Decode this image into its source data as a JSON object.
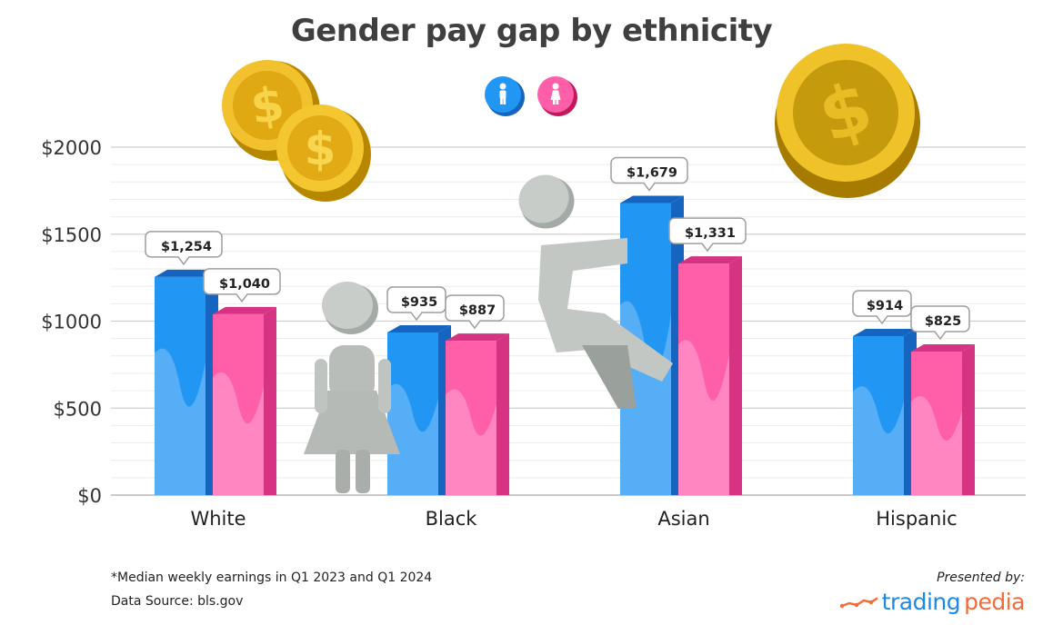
{
  "title": "Gender pay gap by ethnicity",
  "legend": {
    "items": [
      {
        "name": "male-icon",
        "color": "#1e88e5"
      },
      {
        "name": "female-icon",
        "color": "#f0509a"
      }
    ]
  },
  "colors": {
    "male_front": "#2196f3",
    "male_side": "#1565c0",
    "female_front": "#ff5fa8",
    "female_side": "#d63384",
    "grid": "#dddddd",
    "coin": "#e8b820"
  },
  "chart_data": {
    "type": "bar",
    "categories": [
      "White",
      "Black",
      "Asian",
      "Hispanic"
    ],
    "series": [
      {
        "values": [
          1254,
          935,
          1679,
          914
        ],
        "labels": [
          "$1,254",
          "$935",
          "$1,679",
          "$914"
        ]
      },
      {
        "values": [
          1040,
          887,
          1331,
          825
        ],
        "labels": [
          "$1,040",
          "$887",
          "$1,331",
          "$825"
        ]
      }
    ],
    "ylim": [
      0,
      2000
    ],
    "yticks": [
      0,
      500,
      1000,
      1500,
      2000
    ],
    "ytick_labels": [
      "$0",
      "$500",
      "$1000",
      "$1500",
      "$2000"
    ],
    "grid": true,
    "legend_position": "top-center"
  },
  "footer": {
    "note": "*Median weekly earnings in Q1 2023 and Q1 2024",
    "source": "Data Source: bls.gov",
    "presented_by": "Presented by:",
    "brand_part1": "trading",
    "brand_part2": "pedia"
  }
}
